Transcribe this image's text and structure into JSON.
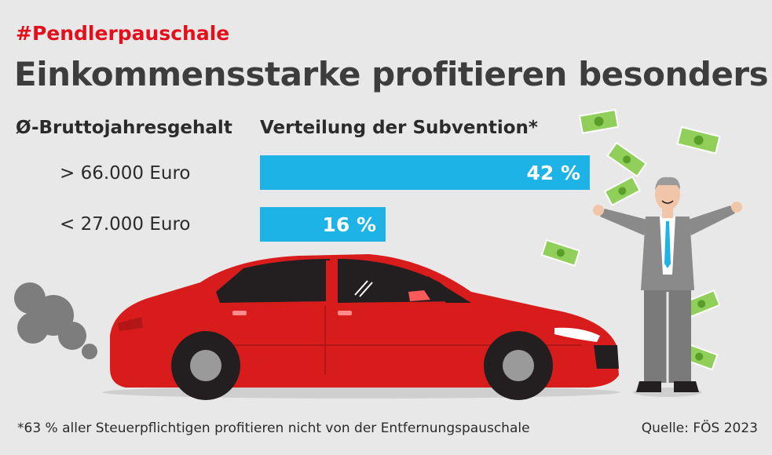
{
  "hashtag": "#Pendlerpauschale",
  "title": "Einkommensstarke profitieren besonders",
  "column_headers": {
    "left": "Ø-Bruttojahresgehalt",
    "right": "Verteilung der Subvention*"
  },
  "footnote": "*63 % aller Steuerpflichtigen profitieren nicht von der Entfernungspauschale",
  "source": "Quelle: FÖS 2023",
  "colors": {
    "bar": "#1eb3e6",
    "accent_red": "#e3101b",
    "car": "#d81c1c",
    "title": "#3d3d3d"
  },
  "chart_data": {
    "type": "bar",
    "orientation": "horizontal",
    "categories": [
      "> 66.000 Euro",
      "< 27.000 Euro"
    ],
    "values": [
      42,
      16
    ],
    "value_labels": [
      "42 %",
      "16 %"
    ],
    "xlim": [
      0,
      42
    ],
    "title": "Verteilung der Subvention*",
    "xlabel": "",
    "ylabel": "Ø-Bruttojahresgehalt",
    "grid": false
  },
  "icons": [
    "banknote-icon",
    "businessman-illustration",
    "car-illustration",
    "exhaust-smoke-icon"
  ]
}
